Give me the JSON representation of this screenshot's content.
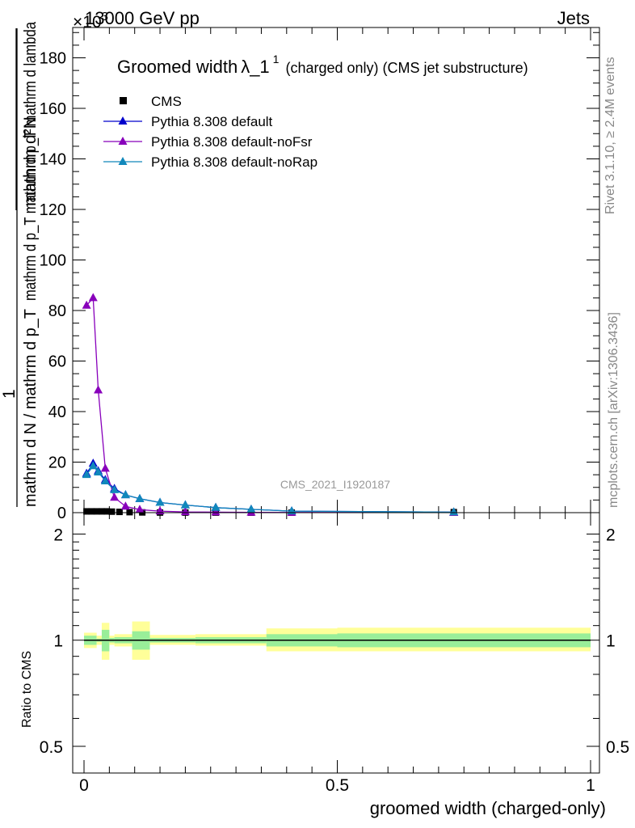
{
  "header": {
    "energy_label": "13000 GeV pp",
    "exponent_label": "×10",
    "exponent_sup": "3",
    "process_label": "Jets"
  },
  "main_panel": {
    "title": "Groomed width",
    "title_symbol": "λ_1",
    "title_sup": "1",
    "title_detail": "(charged only) (CMS jet substructure)",
    "ylabel_top": "mathrm d²N",
    "ylabel_mid": "mathrm d p_T mathrm d p_T mathrm d lambda",
    "ylabel_one": "1",
    "ylabel_bottom": "mathrm d N / mathrm d p_T",
    "watermark": "CMS_2021_I1920187"
  },
  "side_text": {
    "rivet": "Rivet 3.1.10, ≥ 2.4M events",
    "mcplots": "mcplots.cern.ch [arXiv:1306.3436]"
  },
  "ratio_panel": {
    "ylabel": "Ratio to CMS"
  },
  "colors": {
    "cms": "#000000",
    "default": "#0000cc",
    "noFsr": "#8800bb",
    "noRap": "#1188bb",
    "band_outer": "#ffff99",
    "band_inner": "#99ee99"
  },
  "chart_data": [
    {
      "type": "line",
      "xlabel": "groomed width (charged-only)",
      "xlim": [
        0,
        1
      ],
      "ylim": [
        0,
        192
      ],
      "x_ticks": [
        "0",
        "0.5",
        "1"
      ],
      "y_ticks": [
        "0",
        "20",
        "40",
        "60",
        "80",
        "100",
        "120",
        "140",
        "160",
        "180"
      ],
      "y_scale_factor": "×10^3",
      "series": [
        {
          "name": "CMS",
          "marker": "square",
          "x": [
            0.005,
            0.015,
            0.025,
            0.035,
            0.045,
            0.055,
            0.07,
            0.09,
            0.115,
            0.15,
            0.2,
            0.26,
            0.33,
            0.41,
            0.73
          ],
          "y": [
            0.5,
            0.5,
            0.5,
            0.5,
            0.5,
            0.4,
            0.3,
            0.2,
            0.1,
            0.05,
            0.03,
            0.02,
            0.01,
            0.01,
            0.2
          ]
        },
        {
          "name": "Pythia 8.308 default",
          "marker": "triangle",
          "x": [
            0.005,
            0.018,
            0.028,
            0.042,
            0.06,
            0.082,
            0.11,
            0.15,
            0.2,
            0.26,
            0.33,
            0.41,
            0.73
          ],
          "y": [
            15.5,
            19.5,
            16.5,
            13,
            9.5,
            7,
            5.5,
            4,
            3,
            2,
            1.3,
            0.6,
            0.2
          ]
        },
        {
          "name": "Pythia 8.308 default-noFsr",
          "marker": "triangle",
          "x": [
            0.005,
            0.018,
            0.028,
            0.042,
            0.06,
            0.082,
            0.11,
            0.15,
            0.2,
            0.26,
            0.33,
            0.41,
            0.73
          ],
          "y": [
            82,
            85,
            48.5,
            17.5,
            6,
            2.5,
            1.2,
            0.6,
            0.3,
            0.2,
            0.1,
            0.05,
            0.02
          ]
        },
        {
          "name": "Pythia 8.308 default-noRap",
          "marker": "triangle",
          "x": [
            0.005,
            0.018,
            0.028,
            0.042,
            0.06,
            0.082,
            0.11,
            0.15,
            0.2,
            0.26,
            0.33,
            0.41,
            0.73
          ],
          "y": [
            15,
            18.5,
            16,
            12.5,
            9,
            7,
            5.5,
            4,
            3,
            2,
            1.3,
            0.6,
            0.2
          ]
        }
      ]
    },
    {
      "type": "area",
      "title": "",
      "ylabel": "Ratio to CMS",
      "xlim": [
        0,
        1
      ],
      "ylim": [
        0.42,
        2.3
      ],
      "y_scale": "log",
      "y_ticks": [
        "0.5",
        "1",
        "2"
      ],
      "reference_line": 1,
      "bins": [
        {
          "x0": 0.0,
          "x1": 0.025,
          "outer": [
            0.95,
            1.05
          ],
          "inner": [
            0.97,
            1.03
          ]
        },
        {
          "x0": 0.025,
          "x1": 0.035,
          "outer": [
            0.97,
            1.03
          ],
          "inner": [
            0.99,
            1.01
          ]
        },
        {
          "x0": 0.035,
          "x1": 0.05,
          "outer": [
            0.88,
            1.12
          ],
          "inner": [
            0.93,
            1.07
          ]
        },
        {
          "x0": 0.05,
          "x1": 0.06,
          "outer": [
            0.97,
            1.03
          ],
          "inner": [
            0.985,
            1.015
          ]
        },
        {
          "x0": 0.06,
          "x1": 0.095,
          "outer": [
            0.96,
            1.04
          ],
          "inner": [
            0.98,
            1.02
          ]
        },
        {
          "x0": 0.095,
          "x1": 0.13,
          "outer": [
            0.88,
            1.13
          ],
          "inner": [
            0.94,
            1.06
          ]
        },
        {
          "x0": 0.13,
          "x1": 0.22,
          "outer": [
            0.97,
            1.035
          ],
          "inner": [
            0.985,
            1.015
          ]
        },
        {
          "x0": 0.22,
          "x1": 0.36,
          "outer": [
            0.965,
            1.04
          ],
          "inner": [
            0.98,
            1.02
          ]
        },
        {
          "x0": 0.36,
          "x1": 0.5,
          "outer": [
            0.93,
            1.08
          ],
          "inner": [
            0.96,
            1.04
          ]
        },
        {
          "x0": 0.5,
          "x1": 1.0,
          "outer": [
            0.93,
            1.085
          ],
          "inner": [
            0.955,
            1.045
          ]
        }
      ]
    }
  ]
}
